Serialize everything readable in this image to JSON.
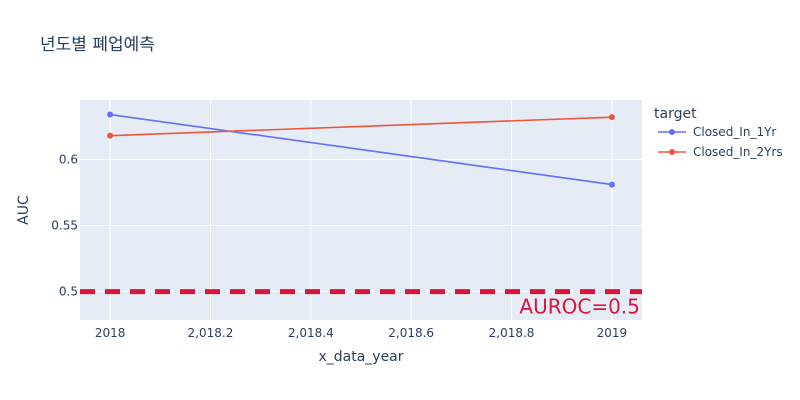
{
  "chart_data": {
    "type": "line",
    "title": "년도별 폐업예측",
    "xlabel": "x_data_year",
    "ylabel": "AUC",
    "xlim": [
      2017.94,
      2019.06
    ],
    "ylim": [
      0.4785,
      0.645
    ],
    "x_ticks": [
      2018,
      2018.2,
      2018.4,
      2018.6,
      2018.8,
      2019
    ],
    "x_tick_labels": [
      "2018",
      "2,018.2",
      "2,018.4",
      "2,018.6",
      "2,018.8",
      "2019"
    ],
    "y_ticks": [
      0.5,
      0.55,
      0.6
    ],
    "y_tick_labels": [
      "0.5",
      "0.55",
      "0.6"
    ],
    "grid": true,
    "legend": {
      "title": "target",
      "position": "right"
    },
    "series": [
      {
        "name": "Closed_In_1Yr",
        "color": "#636efa",
        "x": [
          2018,
          2019
        ],
        "y": [
          0.634,
          0.581
        ]
      },
      {
        "name": "Closed_In_2Yrs",
        "color": "#ef553b",
        "x": [
          2018,
          2019
        ],
        "y": [
          0.618,
          0.632
        ]
      }
    ],
    "reference_line": {
      "y": 0.5,
      "color": "#dc143c",
      "style": "dashed"
    },
    "annotation": {
      "text": "AUROC=0.5",
      "color": "#dc143c",
      "x": 2019,
      "y": 0.5
    }
  }
}
